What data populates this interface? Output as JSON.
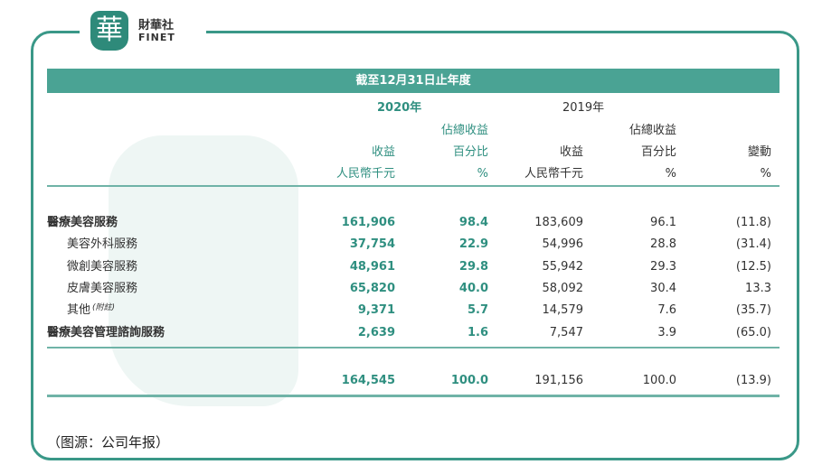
{
  "logo": {
    "glyph": "華",
    "name_cn": "財華社",
    "name_en": "FINET"
  },
  "header": {
    "band": "截至12月31日止年度",
    "year_2020": "2020年",
    "year_2019": "2019年",
    "pct_top": "佔總收益",
    "revenue": "收益",
    "pct": "百分比",
    "change": "變動",
    "unit_rmb": "人民幣千元",
    "unit_pct": "%"
  },
  "rows": [
    {
      "label": "醫療美容服務",
      "bold": true,
      "v2020": "161,906",
      "p2020": "98.4",
      "v2019": "183,609",
      "p2019": "96.1",
      "chg": "(11.8)"
    },
    {
      "label": "美容外科服務",
      "v2020": "37,754",
      "p2020": "22.9",
      "v2019": "54,996",
      "p2019": "28.8",
      "chg": "(31.4)"
    },
    {
      "label": "微創美容服務",
      "v2020": "48,961",
      "p2020": "29.8",
      "v2019": "55,942",
      "p2019": "29.3",
      "chg": "(12.5)"
    },
    {
      "label": "皮膚美容服務",
      "v2020": "65,820",
      "p2020": "40.0",
      "v2019": "58,092",
      "p2019": "30.4",
      "chg": "13.3"
    },
    {
      "label": "其他",
      "note": "(附註)",
      "v2020": "9,371",
      "p2020": "5.7",
      "v2019": "14,579",
      "p2019": "7.6",
      "chg": "(35.7)"
    },
    {
      "label": "醫療美容管理諮詢服務",
      "bold": true,
      "v2020": "2,639",
      "p2020": "1.6",
      "v2019": "7,547",
      "p2019": "3.9",
      "chg": "(65.0)"
    }
  ],
  "total": {
    "v2020": "164,545",
    "p2020": "100.0",
    "v2019": "191,156",
    "p2019": "100.0",
    "chg": "(13.9)"
  },
  "source": "（图源：公司年报）",
  "colors": {
    "accent": "#3a9888"
  }
}
